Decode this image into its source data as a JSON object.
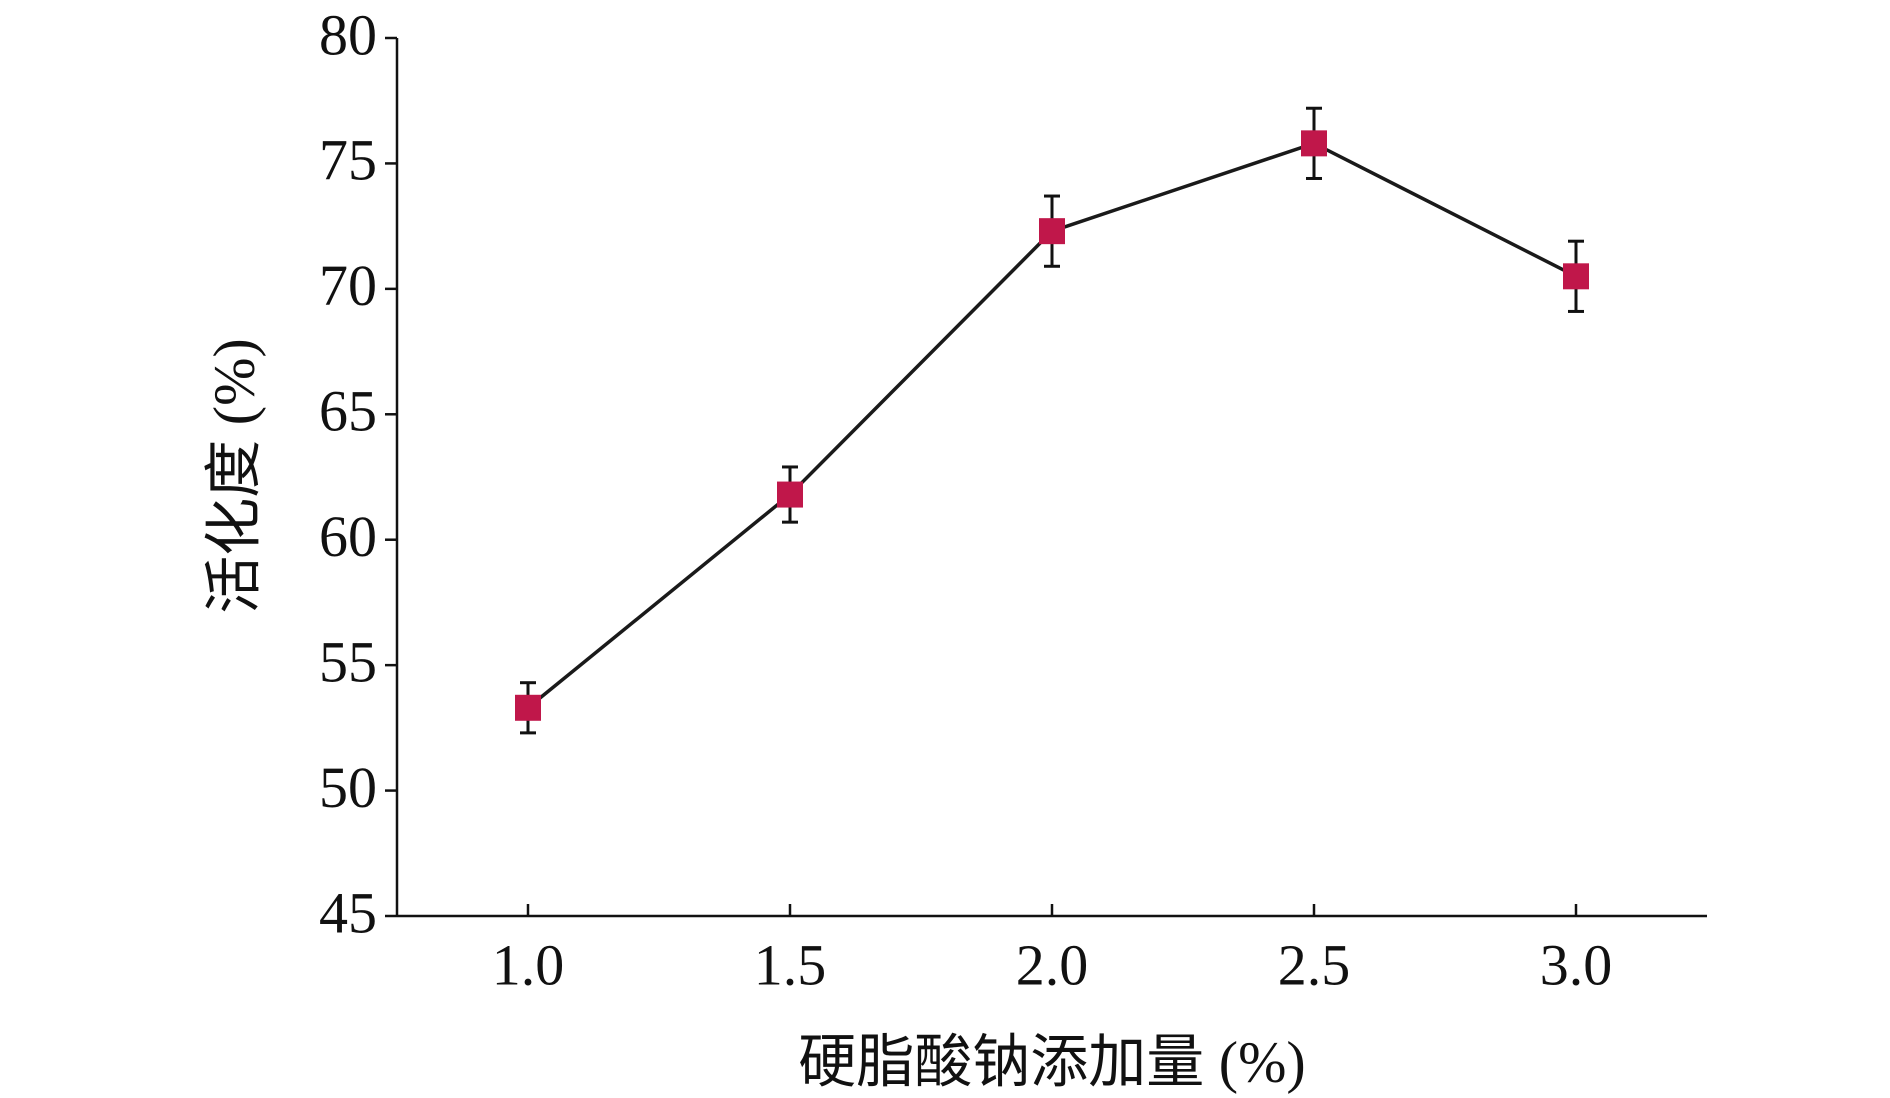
{
  "chart_data": {
    "type": "line",
    "x_label": "硬脂酸钠添加量 (%)",
    "y_label": "活化度 (%)",
    "x": [
      1.0,
      1.5,
      2.0,
      2.5,
      3.0
    ],
    "values": [
      53.3,
      61.8,
      72.3,
      75.8,
      70.5
    ],
    "errors": [
      1.0,
      1.1,
      1.4,
      1.4,
      1.4
    ],
    "color": "#c0174a",
    "line_color": "#1a1a1a",
    "xlim": [
      0.75,
      3.25
    ],
    "xticks": [
      {
        "value": 1.0,
        "label": "1.0"
      },
      {
        "value": 1.5,
        "label": "1.5"
      },
      {
        "value": 2.0,
        "label": "2.0"
      },
      {
        "value": 2.5,
        "label": "2.5"
      },
      {
        "value": 3.0,
        "label": "3.0"
      }
    ],
    "ylim": [
      45,
      80
    ],
    "yticks": [
      45,
      50,
      55,
      60,
      65,
      70,
      75,
      80
    ],
    "grid": false
  }
}
